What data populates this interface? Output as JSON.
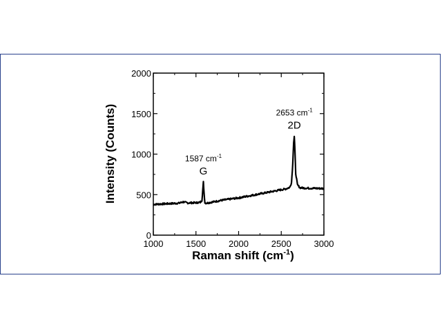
{
  "chart_data": {
    "type": "line",
    "xlabel": "Raman shift (cm",
    "xlabel_sup": "-1",
    "xlabel_end": ")",
    "ylabel": "Intensity (Counts)",
    "xlim": [
      1000,
      3000
    ],
    "ylim": [
      0,
      2000
    ],
    "xticks": [
      "1000",
      "1500",
      "2000",
      "2500",
      "3000"
    ],
    "yticks": [
      "0",
      "500",
      "1000",
      "1500",
      "2000"
    ],
    "grid": false,
    "series": [
      {
        "color": "#000000",
        "x": [
          1000,
          1100,
          1200,
          1300,
          1350,
          1400,
          1500,
          1550,
          1570,
          1580,
          1587,
          1595,
          1605,
          1620,
          1700,
          1800,
          1900,
          2000,
          2100,
          2200,
          2300,
          2400,
          2500,
          2550,
          2600,
          2620,
          2635,
          2645,
          2653,
          2660,
          2670,
          2690,
          2720,
          2800,
          2900,
          3000
        ],
        "y": [
          380,
          385,
          390,
          395,
          410,
          398,
          400,
          405,
          430,
          560,
          655,
          520,
          400,
          395,
          410,
          430,
          445,
          460,
          480,
          500,
          520,
          540,
          560,
          570,
          590,
          650,
          880,
          1150,
          1220,
          1050,
          760,
          620,
          585,
          580,
          578,
          575
        ]
      }
    ],
    "annotations": [
      {
        "peak_x": 1587,
        "value": "1587 cm",
        "sup": "-1",
        "label": "G"
      },
      {
        "peak_x": 2653,
        "value": "2653 cm",
        "sup": "-1",
        "label": "2D"
      }
    ]
  }
}
